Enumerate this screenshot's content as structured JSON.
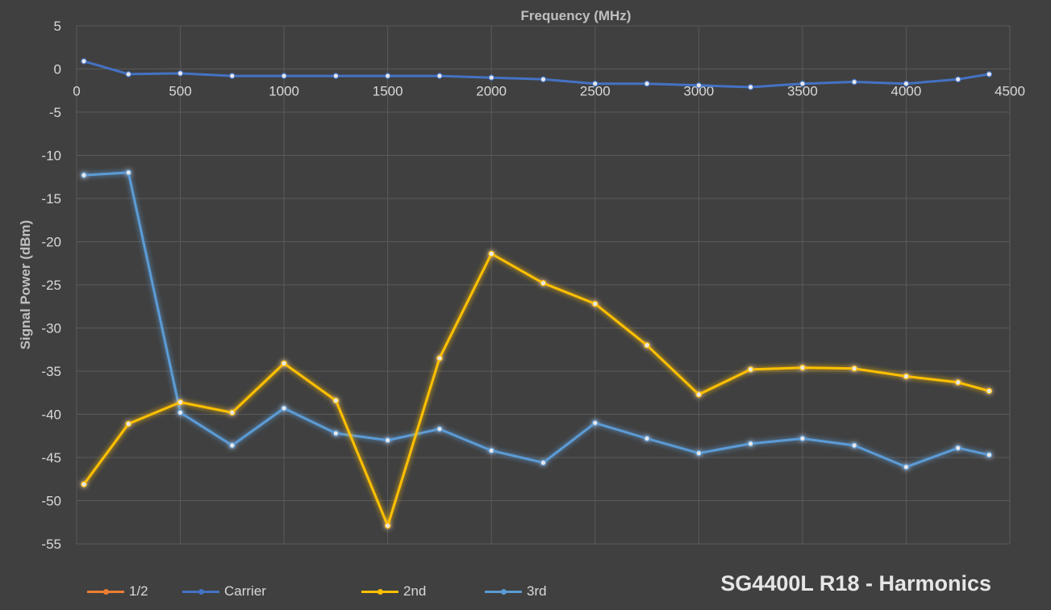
{
  "chart_data": {
    "type": "line",
    "title": "SG4400L R18 - Harmonics",
    "xlabel": "Frequency (MHz)",
    "ylabel": "Signal Power (dBm)",
    "xlim": [
      0,
      4500
    ],
    "ylim": [
      -55,
      5
    ],
    "x_ticks": [
      0,
      500,
      1000,
      1500,
      2000,
      2500,
      3000,
      3500,
      4000,
      4500
    ],
    "y_ticks": [
      5,
      0,
      -5,
      -10,
      -15,
      -20,
      -25,
      -30,
      -35,
      -40,
      -45,
      -50,
      -55
    ],
    "x_tick_labels": [
      "0",
      "500",
      "1000",
      "1500",
      "2000",
      "2500",
      "3000",
      "3500",
      "4000",
      "4500"
    ],
    "y_tick_labels": [
      "5",
      "0",
      "-5",
      "-10",
      "-15",
      "-20",
      "-25",
      "-30",
      "-35",
      "-40",
      "-45",
      "-50",
      "-55"
    ],
    "grid": true,
    "legend_position": "bottom-left",
    "series": [
      {
        "name": "1/2",
        "color": "#ed7d31",
        "x": [],
        "y": []
      },
      {
        "name": "Carrier",
        "color": "#4472c4",
        "x": [
          35,
          250,
          500,
          750,
          1000,
          1250,
          1500,
          1750,
          2000,
          2250,
          2500,
          2750,
          3000,
          3250,
          3500,
          3750,
          4000,
          4250,
          4400
        ],
        "y": [
          0.9,
          -0.6,
          -0.5,
          -0.8,
          -0.8,
          -0.8,
          -0.8,
          -0.8,
          -1.0,
          -1.2,
          -1.7,
          -1.7,
          -1.9,
          -2.1,
          -1.7,
          -1.5,
          -1.7,
          -1.2,
          -0.6
        ]
      },
      {
        "name": "2nd",
        "color": "#ffc000",
        "x": [
          35,
          250,
          500,
          750,
          1000,
          1250,
          1500,
          1750,
          2000,
          2250,
          2500,
          2750,
          3000,
          3250,
          3500,
          3750,
          4000,
          4250,
          4400
        ],
        "y": [
          -48.1,
          -41.1,
          -38.6,
          -39.8,
          -34.1,
          -38.4,
          -52.9,
          -33.5,
          -21.4,
          -24.8,
          -27.2,
          -32.0,
          -37.7,
          -34.8,
          -34.6,
          -34.7,
          -35.6,
          -36.3,
          -37.3
        ]
      },
      {
        "name": "3rd",
        "color": "#5b9bd5",
        "x": [
          35,
          250,
          500,
          750,
          1000,
          1250,
          1500,
          1750,
          2000,
          2250,
          2500,
          2750,
          3000,
          3250,
          3500,
          3750,
          4000,
          4250,
          4400
        ],
        "y": [
          -12.3,
          -12.0,
          -39.8,
          -43.6,
          -39.3,
          -42.2,
          -43.0,
          -41.7,
          -44.2,
          -45.6,
          -41.0,
          -42.8,
          -44.5,
          -43.4,
          -42.8,
          -43.6,
          -46.1,
          -43.9,
          -44.7
        ]
      }
    ]
  }
}
